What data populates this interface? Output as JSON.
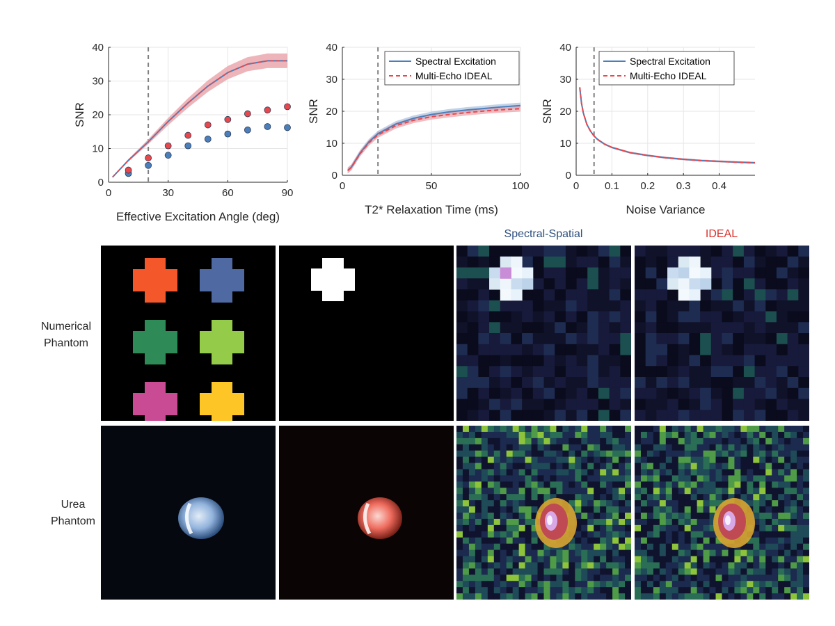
{
  "colors": {
    "blue": "#4a7fbb",
    "red": "#e8474c",
    "blue_band": "#a9bfdd",
    "red_band": "#e9a3a8",
    "grid": "#e6e6e6",
    "vline": "#808080",
    "spectral_title": "#2d4e7e",
    "ideal_title": "#d9302a"
  },
  "legend": {
    "series1": "Spectral Excitation",
    "series2": "Multi-Echo IDEAL"
  },
  "chart_data": [
    {
      "type": "line",
      "xlabel": "Effective Excitation Angle (deg)",
      "ylabel": "SNR",
      "xlim": [
        0,
        90
      ],
      "ylim": [
        0,
        40
      ],
      "xticks": [
        0,
        30,
        60,
        90
      ],
      "yticks": [
        0,
        10,
        20,
        30,
        40
      ],
      "vline": 20,
      "series": [
        {
          "name": "curve",
          "color": "red",
          "x": [
            2,
            10,
            20,
            30,
            40,
            50,
            60,
            70,
            80,
            90
          ],
          "values": [
            1.5,
            6.5,
            12,
            18,
            23.5,
            28.5,
            32.5,
            35,
            36,
            36
          ]
        }
      ],
      "points": [
        {
          "name": "spectral",
          "x": [
            10,
            20,
            30,
            40,
            50,
            60,
            70,
            80,
            90
          ],
          "values": [
            2.6,
            5,
            8,
            10.8,
            12.8,
            14.3,
            15.5,
            16.5,
            16.2
          ]
        },
        {
          "name": "ideal",
          "x": [
            10,
            20,
            30,
            40,
            50,
            60,
            70,
            80,
            90
          ],
          "values": [
            3.6,
            7.2,
            10.8,
            13.9,
            17,
            18.6,
            20.3,
            21.4,
            22.4
          ]
        }
      ]
    },
    {
      "type": "line",
      "xlabel": "T2* Relaxation Time (ms)",
      "ylabel": "SNR",
      "xlim": [
        0,
        100
      ],
      "ylim": [
        0,
        40
      ],
      "xticks": [
        0,
        50,
        100
      ],
      "yticks": [
        0,
        10,
        20,
        30,
        40
      ],
      "vline": 20,
      "legend": true,
      "series": [
        {
          "name": "Spectral Excitation",
          "x": [
            3,
            5,
            10,
            15,
            20,
            30,
            40,
            50,
            60,
            70,
            80,
            90,
            100
          ],
          "values": [
            1.5,
            2.5,
            7,
            10.5,
            13,
            16,
            17.8,
            19,
            19.8,
            20.4,
            20.9,
            21.4,
            21.8
          ]
        },
        {
          "name": "Multi-Echo IDEAL",
          "x": [
            3,
            5,
            10,
            15,
            20,
            30,
            40,
            50,
            60,
            70,
            80,
            90,
            100
          ],
          "values": [
            1.5,
            2.4,
            6.8,
            10.2,
            12.6,
            15.5,
            17.2,
            18.3,
            19,
            19.6,
            20.1,
            20.5,
            20.8
          ]
        }
      ]
    },
    {
      "type": "line",
      "xlabel": "Noise Variance",
      "ylabel": "SNR",
      "xlim": [
        0,
        0.5
      ],
      "ylim": [
        0,
        40
      ],
      "xticks": [
        0.1,
        0.2,
        0.3,
        0.4
      ],
      "yticks": [
        0,
        10,
        20,
        30,
        40
      ],
      "xticklabels": [
        "0.1",
        "0.2",
        "0.3",
        "0.4"
      ],
      "extra_xtick_label": "0",
      "vline": 0.05,
      "legend": true,
      "series": [
        {
          "name": "Spectral Excitation",
          "x": [
            0.01,
            0.015,
            0.02,
            0.03,
            0.04,
            0.05,
            0.06,
            0.08,
            0.1,
            0.15,
            0.2,
            0.25,
            0.3,
            0.35,
            0.4,
            0.45,
            0.5
          ],
          "values": [
            27.5,
            22.5,
            19.5,
            15.9,
            13.8,
            12.3,
            11.2,
            9.7,
            8.7,
            7.1,
            6.2,
            5.5,
            5,
            4.6,
            4.35,
            4.1,
            3.9
          ]
        },
        {
          "name": "Multi-Echo IDEAL",
          "x": [
            0.01,
            0.015,
            0.02,
            0.03,
            0.04,
            0.05,
            0.06,
            0.08,
            0.1,
            0.15,
            0.2,
            0.25,
            0.3,
            0.35,
            0.4,
            0.45,
            0.5
          ],
          "values": [
            27.5,
            22.5,
            19.5,
            15.9,
            13.8,
            12.3,
            11.2,
            9.7,
            8.7,
            7.1,
            6.2,
            5.5,
            5,
            4.6,
            4.35,
            4.1,
            3.9
          ]
        }
      ]
    }
  ],
  "images": {
    "col_titles": [
      "Spectral-Spatial",
      "IDEAL"
    ],
    "row_labels": [
      {
        "line1": "Numerical",
        "line2": "Phantom"
      },
      {
        "line1": "Urea",
        "line2": "Phantom"
      }
    ],
    "phantom_colors": [
      "#f4582a",
      "#4f69a3",
      "#2e8b57",
      "#94cc4a",
      "#c94b93",
      "#fdc526"
    ]
  }
}
